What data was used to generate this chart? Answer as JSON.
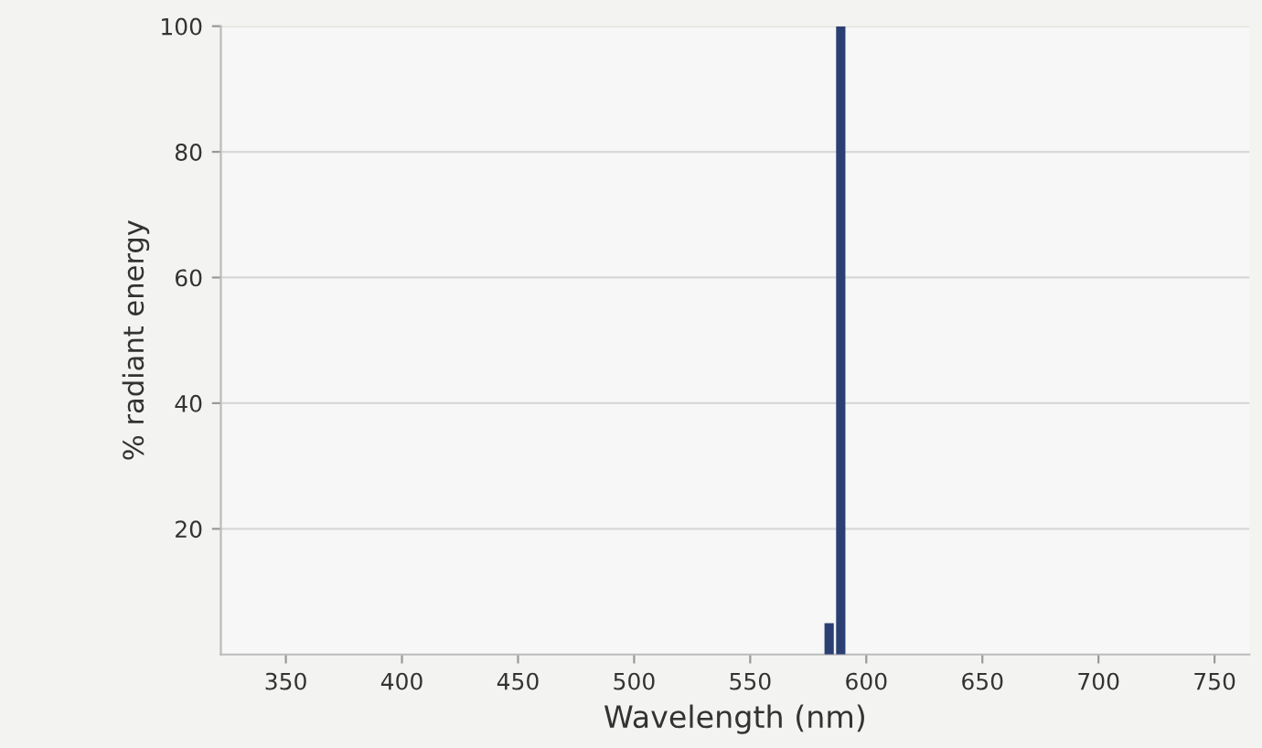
{
  "chart_data": {
    "type": "bar",
    "x": [
      584,
      589
    ],
    "values": [
      5,
      100
    ],
    "color": "#2b3f73",
    "xlabel": "Wavelength (nm)",
    "ylabel": "% radiant energy",
    "xlim": [
      322,
      765
    ],
    "xticks": [
      350,
      400,
      450,
      500,
      550,
      600,
      650,
      700,
      750
    ],
    "ylim": [
      0,
      100
    ],
    "yticks": [
      20,
      40,
      60,
      80,
      100
    ],
    "grid": "y",
    "legend": false
  }
}
